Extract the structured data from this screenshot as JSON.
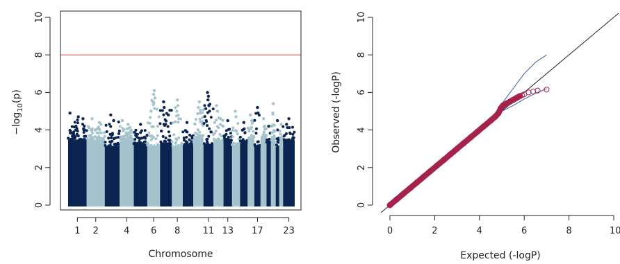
{
  "colors": {
    "chrom_dark": "#0b2552",
    "chrom_light": "#a5c3cc",
    "threshold": "#e0393e",
    "qq_points": "#a5234a",
    "ci_band": "#3a5f9a",
    "diagonal": "#222222",
    "axis": "#222222"
  },
  "chart_data": [
    {
      "type": "scatter",
      "subtype": "manhattan",
      "xlabel": "Chromosome",
      "ylabel_prefix": "−log",
      "ylabel_sub": "10",
      "ylabel_suffix": "(p)",
      "ylim": [
        0,
        10
      ],
      "yticks": [
        "0",
        "2",
        "4",
        "6",
        "8",
        "10"
      ],
      "threshold": 8,
      "xtick_labels": [
        "1",
        "2",
        "4",
        "6",
        "8",
        "11",
        "13",
        "17",
        "23"
      ],
      "chromosomes": [
        {
          "chr": 1,
          "peak": 4.9,
          "high": [
            [
              0.1,
              4.9
            ],
            [
              0.55,
              4.7
            ],
            [
              0.8,
              4.6
            ]
          ]
        },
        {
          "chr": 2,
          "peak": 4.6,
          "high": [
            [
              0.3,
              4.6
            ],
            [
              0.7,
              4.4
            ]
          ]
        },
        {
          "chr": 3,
          "peak": 4.8,
          "high": [
            [
              0.4,
              4.8
            ],
            [
              0.6,
              4.5
            ]
          ]
        },
        {
          "chr": 4,
          "peak": 4.5,
          "high": [
            [
              0.2,
              4.5
            ],
            [
              0.6,
              4.3
            ]
          ]
        },
        {
          "chr": 5,
          "peak": 4.3,
          "high": [
            [
              0.5,
              4.3
            ]
          ]
        },
        {
          "chr": 6,
          "peak": 6.1,
          "high": [
            [
              0.55,
              6.1
            ],
            [
              0.5,
              5.9
            ],
            [
              0.6,
              5.7
            ],
            [
              0.45,
              5.5
            ],
            [
              0.3,
              5.0
            ]
          ]
        },
        {
          "chr": 7,
          "peak": 5.5,
          "high": [
            [
              0.3,
              5.5
            ],
            [
              0.35,
              5.2
            ],
            [
              0.7,
              4.8
            ]
          ]
        },
        {
          "chr": 8,
          "peak": 5.6,
          "high": [
            [
              0.5,
              5.6
            ],
            [
              0.55,
              5.3
            ],
            [
              0.45,
              5.0
            ]
          ]
        },
        {
          "chr": 9,
          "peak": 4.4,
          "high": [
            [
              0.4,
              4.4
            ]
          ]
        },
        {
          "chr": 10,
          "peak": 5.5,
          "high": [
            [
              0.6,
              5.5
            ],
            [
              0.5,
              5.2
            ],
            [
              0.7,
              4.9
            ]
          ]
        },
        {
          "chr": 11,
          "peak": 6.0,
          "high": [
            [
              0.4,
              6.0
            ],
            [
              0.5,
              5.8
            ],
            [
              0.45,
              5.6
            ],
            [
              0.55,
              5.3
            ],
            [
              0.6,
              5.0
            ]
          ]
        },
        {
          "chr": 12,
          "peak": 5.3,
          "high": [
            [
              0.3,
              5.3
            ],
            [
              0.4,
              5.0
            ],
            [
              0.7,
              4.6
            ]
          ]
        },
        {
          "chr": 13,
          "peak": 4.5,
          "high": [
            [
              0.5,
              4.5
            ]
          ]
        },
        {
          "chr": 14,
          "peak": 5.0,
          "high": [
            [
              0.4,
              5.0
            ],
            [
              0.5,
              4.7
            ]
          ]
        },
        {
          "chr": 15,
          "peak": 4.4,
          "high": [
            [
              0.5,
              4.4
            ]
          ]
        },
        {
          "chr": 16,
          "peak": 4.8,
          "high": [
            [
              0.4,
              4.8
            ],
            [
              0.6,
              4.5
            ]
          ]
        },
        {
          "chr": 17,
          "peak": 5.2,
          "high": [
            [
              0.5,
              5.2
            ],
            [
              0.6,
              4.9
            ]
          ]
        },
        {
          "chr": 18,
          "peak": 4.6,
          "high": [
            [
              0.5,
              4.6
            ]
          ]
        },
        {
          "chr": 19,
          "peak": 4.2,
          "high": [
            [
              0.5,
              4.2
            ]
          ]
        },
        {
          "chr": 20,
          "peak": 5.4,
          "high": [
            [
              0.5,
              5.4
            ],
            [
              0.4,
              4.9
            ]
          ]
        },
        {
          "chr": 21,
          "peak": 4.5,
          "high": [
            [
              0.5,
              4.5
            ]
          ]
        },
        {
          "chr": 22,
          "peak": 4.3,
          "high": [
            [
              0.5,
              4.3
            ]
          ]
        },
        {
          "chr": 23,
          "peak": 4.6,
          "high": [
            [
              0.5,
              4.6
            ],
            [
              0.3,
              4.3
            ]
          ]
        }
      ]
    },
    {
      "type": "scatter",
      "subtype": "qq",
      "xlabel": "Expected (-logP)",
      "ylabel": "Observed (-logP)",
      "xlim": [
        0,
        10
      ],
      "ylim": [
        0,
        10
      ],
      "xticks": [
        "0",
        "2",
        "4",
        "6",
        "8",
        "10"
      ],
      "yticks": [
        "0",
        "2",
        "4",
        "6",
        "8",
        "10"
      ],
      "points": [
        [
          0.0,
          0.0
        ],
        [
          0.3,
          0.3
        ],
        [
          0.6,
          0.6
        ],
        [
          0.9,
          0.9
        ],
        [
          1.2,
          1.2
        ],
        [
          1.5,
          1.5
        ],
        [
          1.8,
          1.8
        ],
        [
          2.1,
          2.1
        ],
        [
          2.4,
          2.4
        ],
        [
          2.7,
          2.7
        ],
        [
          3.0,
          3.0
        ],
        [
          3.3,
          3.3
        ],
        [
          3.6,
          3.6
        ],
        [
          3.9,
          3.9
        ],
        [
          4.2,
          4.2
        ],
        [
          4.5,
          4.5
        ],
        [
          4.7,
          4.7
        ],
        [
          4.85,
          4.9
        ],
        [
          4.95,
          5.15
        ],
        [
          5.05,
          5.3
        ],
        [
          5.2,
          5.4
        ],
        [
          5.35,
          5.5
        ],
        [
          5.5,
          5.6
        ],
        [
          5.65,
          5.7
        ],
        [
          5.8,
          5.8
        ],
        [
          5.9,
          5.85
        ],
        [
          6.0,
          5.9
        ],
        [
          6.2,
          6.0
        ],
        [
          6.4,
          6.05
        ],
        [
          6.6,
          6.1
        ],
        [
          7.0,
          6.15
        ]
      ],
      "ci_upper": [
        [
          4.5,
          4.5
        ],
        [
          5.0,
          5.4
        ],
        [
          5.5,
          6.2
        ],
        [
          6.0,
          7.0
        ],
        [
          6.5,
          7.6
        ],
        [
          7.0,
          8.0
        ]
      ],
      "ci_lower": [
        [
          4.5,
          4.5
        ],
        [
          5.0,
          5.0
        ],
        [
          5.5,
          5.3
        ],
        [
          6.0,
          5.65
        ],
        [
          6.5,
          5.95
        ],
        [
          7.0,
          6.2
        ]
      ]
    }
  ]
}
